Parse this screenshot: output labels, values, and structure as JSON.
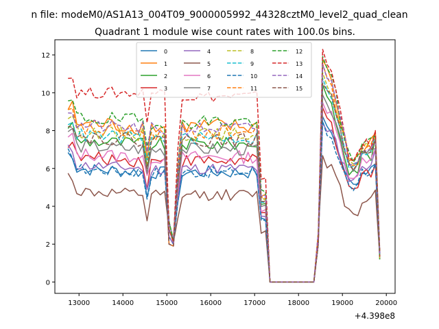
{
  "figure": {
    "suptitle": "n file: modeM0/AS1A13_004T09_9000005992_44328cztM0_level2_quad_clean"
  },
  "chart_data": {
    "type": "line",
    "title": "Quadrant 1 module wise count rates with 100.0s bins.",
    "xlabel": "",
    "ylabel": "",
    "x_offset_label": "+4.398e8",
    "xlim": [
      12450,
      20200
    ],
    "ylim": [
      -0.6,
      12.8
    ],
    "xticks": [
      13000,
      14000,
      15000,
      16000,
      17000,
      18000,
      19000,
      20000
    ],
    "yticks": [
      0,
      2,
      4,
      6,
      8,
      10,
      12
    ],
    "grid": false,
    "legend_position": "upper-center",
    "legend_columns": 4,
    "x_start": 12750,
    "x_step": 100,
    "gap_x_range": [
      17350,
      18350
    ],
    "series": [
      {
        "name": "0",
        "color": "#1f77b4",
        "dash": "solid",
        "base": 6.0,
        "noise": 0.35,
        "peak": 8.7,
        "recovery": 5.2
      },
      {
        "name": "1",
        "color": "#ff7f0e",
        "dash": "solid",
        "base": 8.4,
        "noise": 0.45,
        "peak": 11.8,
        "recovery": 6.5
      },
      {
        "name": "2",
        "color": "#2ca02c",
        "dash": "solid",
        "base": 7.5,
        "noise": 0.35,
        "peak": 10.3,
        "recovery": 6.0
      },
      {
        "name": "3",
        "color": "#d62728",
        "dash": "solid",
        "base": 6.6,
        "noise": 0.35,
        "peak": 9.2,
        "recovery": 5.0
      },
      {
        "name": "4",
        "color": "#9467bd",
        "dash": "solid",
        "base": 6.2,
        "noise": 0.3,
        "peak": 8.5,
        "recovery": 5.5
      },
      {
        "name": "5",
        "color": "#8c564b",
        "dash": "solid",
        "base": 4.8,
        "noise": 0.3,
        "peak": 6.6,
        "recovery": 3.7
      },
      {
        "name": "6",
        "color": "#e377c2",
        "dash": "solid",
        "base": 6.8,
        "noise": 0.35,
        "peak": 9.5,
        "recovery": 5.6
      },
      {
        "name": "7",
        "color": "#7f7f7f",
        "dash": "solid",
        "base": 7.2,
        "noise": 0.35,
        "peak": 10.0,
        "recovery": 6.0
      },
      {
        "name": "8",
        "color": "#bcbd22",
        "dash": "dashed",
        "base": 8.0,
        "noise": 0.35,
        "peak": 11.0,
        "recovery": 6.4
      },
      {
        "name": "9",
        "color": "#17becf",
        "dash": "dashed",
        "base": 7.8,
        "noise": 0.35,
        "peak": 10.8,
        "recovery": 6.3
      },
      {
        "name": "10",
        "color": "#1f77b4",
        "dash": "dashed",
        "base": 6.0,
        "noise": 0.3,
        "peak": 8.4,
        "recovery": 5.0
      },
      {
        "name": "11",
        "color": "#ff7f0e",
        "dash": "dashed",
        "base": 8.1,
        "noise": 0.4,
        "peak": 11.5,
        "recovery": 6.4
      },
      {
        "name": "12",
        "color": "#2ca02c",
        "dash": "dashed",
        "base": 8.7,
        "noise": 0.4,
        "peak": 12.0,
        "recovery": 6.6
      },
      {
        "name": "13",
        "color": "#d62728",
        "dash": "dashed",
        "base": 10.0,
        "noise": 0.3,
        "peak": 12.2,
        "recovery": 6.6
      },
      {
        "name": "14",
        "color": "#9467bd",
        "dash": "dashed",
        "base": 8.3,
        "noise": 0.35,
        "peak": 11.5,
        "recovery": 6.5
      },
      {
        "name": "15",
        "color": "#8c564b",
        "dash": "dashed",
        "base": 7.7,
        "noise": 0.35,
        "peak": 10.6,
        "recovery": 6.2
      }
    ]
  }
}
